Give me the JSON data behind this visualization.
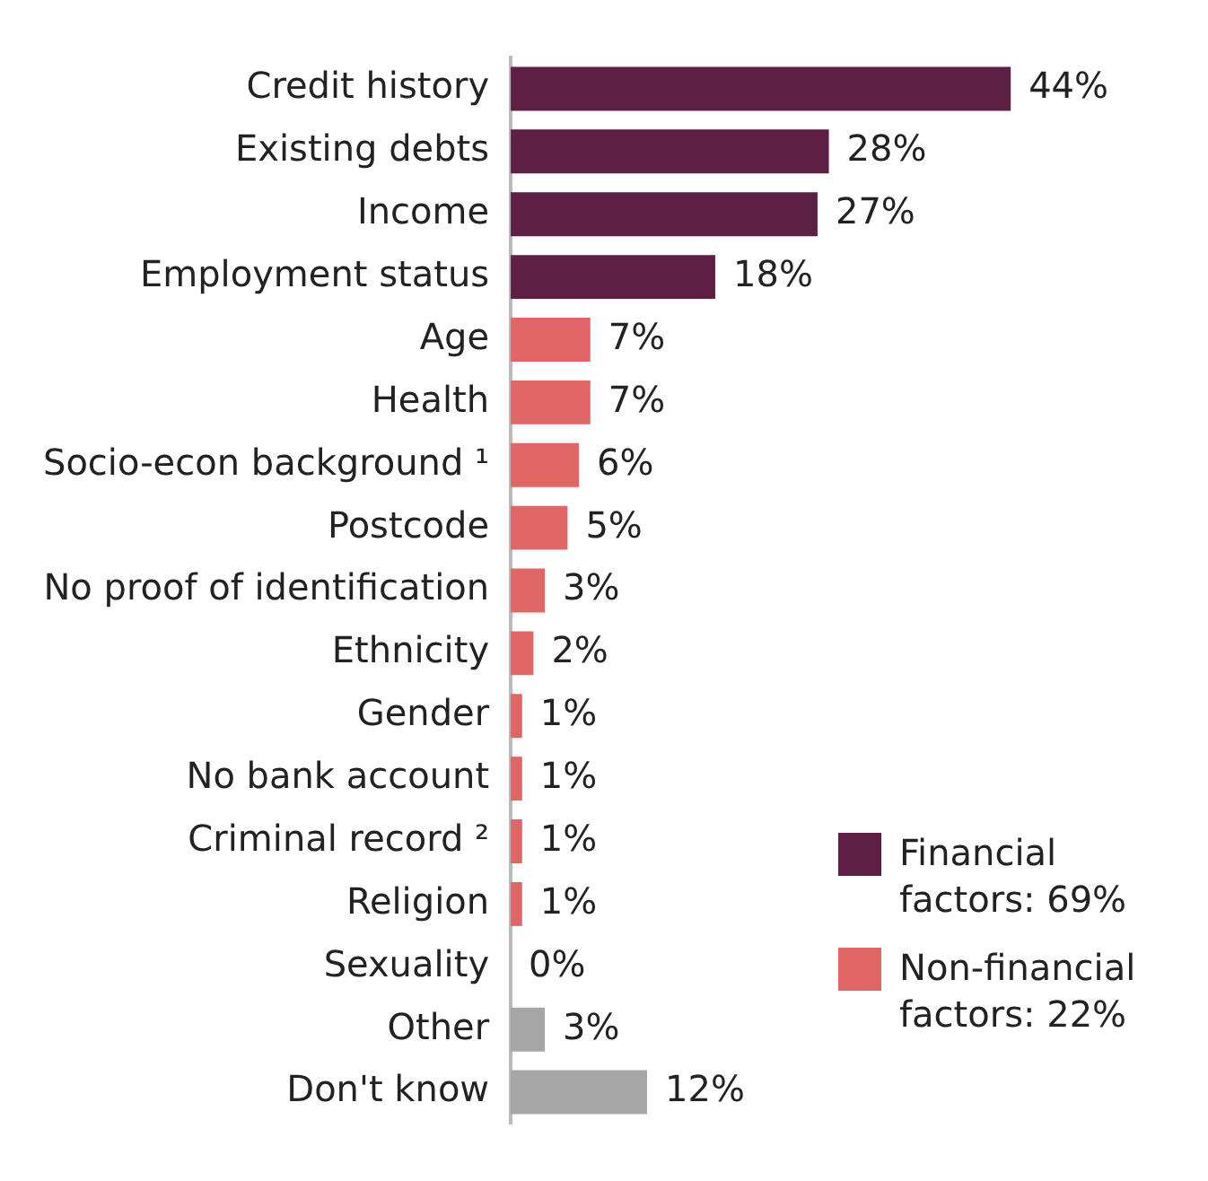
{
  "chart_data": {
    "type": "bar",
    "orientation": "horizontal",
    "stacked": true,
    "legend": "bottom right",
    "categories": [
      "Credit history",
      "Existing debts",
      "Income",
      "Employment status",
      "Age",
      "Health",
      "Socio-econ background ¹",
      "Postcode",
      "No proof of identification",
      "Ethnicity",
      "Gender",
      "No bank account",
      "Criminal record ²",
      "Religion",
      "Sexuality",
      "Other",
      "Don't know"
    ],
    "series": [
      {
        "name": "Financial factors: 69%",
        "color": "#5e1f45",
        "values": [
          44,
          28,
          27,
          18,
          null,
          null,
          null,
          null,
          null,
          null,
          null,
          null,
          null,
          null,
          null,
          null,
          null
        ],
        "value_labels": [
          "44%",
          "28%",
          "27%",
          "18%",
          null,
          null,
          null,
          null,
          null,
          null,
          null,
          null,
          null,
          null,
          null,
          null,
          null
        ]
      },
      {
        "name": "Non-financial factors: 22%",
        "color": "#e06666",
        "values": [
          null,
          null,
          null,
          null,
          7,
          7,
          6,
          5,
          3,
          2,
          1,
          1,
          1,
          1,
          0,
          null,
          null
        ],
        "value_labels": [
          null,
          null,
          null,
          null,
          "7%",
          "7%",
          "6%",
          "5%",
          "3%",
          "2%",
          "1%",
          "1%",
          "1%",
          "1%",
          "0%",
          null,
          null
        ]
      },
      {
        "color": "#a6a6a6",
        "values": [
          null,
          null,
          null,
          null,
          null,
          null,
          null,
          null,
          null,
          null,
          null,
          null,
          null,
          null,
          null,
          3,
          12
        ],
        "value_labels": [
          null,
          null,
          null,
          null,
          null,
          null,
          null,
          null,
          null,
          null,
          null,
          null,
          null,
          null,
          null,
          "3%",
          "12%"
        ]
      }
    ]
  }
}
